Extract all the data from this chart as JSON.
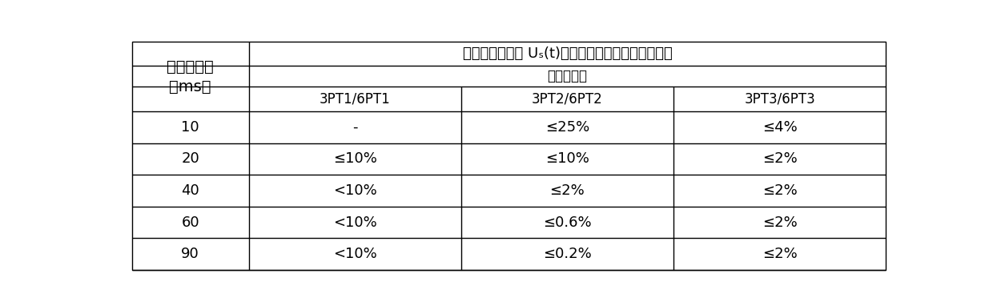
{
  "title_row1": "二次电压瞬时值 Uₛ(t)与短路前二次电压峰值的比值",
  "title_row2": "准确度等级",
  "col_header_left_line1": "短路后时间",
  "col_header_left_line2": "（ms）",
  "col_headers": [
    "3PT1/6PT1",
    "3PT2/6PT2",
    "3PT3/6PT3"
  ],
  "row_labels": [
    "10",
    "20",
    "40",
    "60",
    "90"
  ],
  "data": [
    [
      "-",
      "≤25%",
      "≤4%"
    ],
    [
      "≤10%",
      "≤10%",
      "≤2%"
    ],
    [
      "<10%",
      "≤2%",
      "≤2%"
    ],
    [
      "<10%",
      "≤0.6%",
      "≤2%"
    ],
    [
      "<10%",
      "≤0.2%",
      "≤2%"
    ]
  ],
  "bg_color": "#ffffff",
  "line_color": "#000000",
  "font_size_title": 13,
  "font_size_header": 12,
  "font_size_data": 13,
  "font_size_left": 14
}
